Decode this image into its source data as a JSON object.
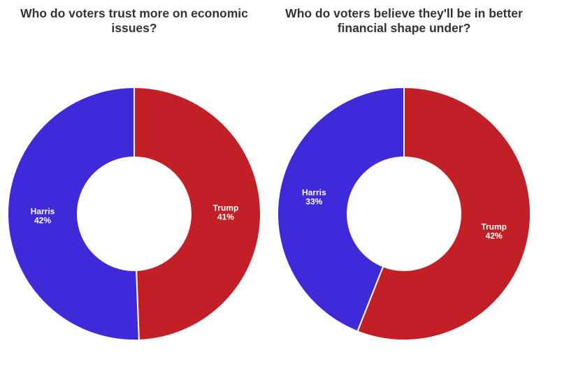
{
  "page": {
    "background": "#ffffff",
    "title_color": "#333333",
    "label_color": "#ffffff"
  },
  "chart_data": [
    {
      "type": "pie",
      "subtype": "donut",
      "title": "Who do voters trust more on economic issues?",
      "title_lines": [
        "Who do voters trust more on economic",
        "issues?"
      ],
      "value_suffix": "%",
      "legend": "none",
      "labels_position": "inside",
      "start_angle_deg": 0,
      "direction": "clockwise",
      "series": [
        {
          "name": "Trump",
          "value": 41,
          "color": "#C22026"
        },
        {
          "name": "Harris",
          "value": 42,
          "color": "#3F2AD9"
        }
      ]
    },
    {
      "type": "pie",
      "subtype": "donut",
      "title": "Who do voters believe they'll be in better financial shape under?",
      "title_lines": [
        "Who do voters believe they'll be in better",
        "financial shape under?"
      ],
      "value_suffix": "%",
      "legend": "none",
      "labels_position": "inside",
      "start_angle_deg": 0,
      "direction": "clockwise",
      "series": [
        {
          "name": "Trump",
          "value": 42,
          "color": "#C22026"
        },
        {
          "name": "Harris",
          "value": 33,
          "color": "#3F2AD9"
        }
      ]
    }
  ]
}
